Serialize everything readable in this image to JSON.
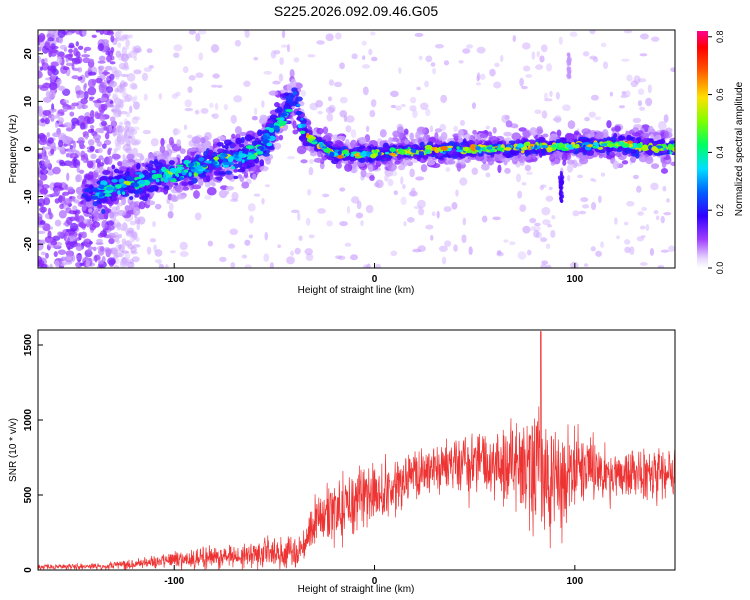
{
  "title": "S225.2026.092.09.46.G05",
  "chart_data": [
    {
      "type": "heatmap",
      "title": "",
      "xlabel": "Height of straight line (km)",
      "ylabel": "Frequency (Hz)",
      "xlim": [
        -168,
        150
      ],
      "ylim": [
        -25,
        25
      ],
      "xticks": [
        -100,
        0,
        100
      ],
      "yticks": [
        -20,
        -10,
        0,
        10,
        20
      ],
      "xtick_labels": [
        "-100",
        "0",
        "100"
      ],
      "ytick_labels": [
        "-20",
        "-10",
        "0",
        "10",
        "20"
      ],
      "colorbar": {
        "label": "Normalized spectral amplitude",
        "range": [
          0.0,
          0.82
        ],
        "ticks": [
          0.0,
          0.2,
          0.4,
          0.6,
          0.8
        ],
        "tick_labels": [
          "0.0",
          "0.2",
          "0.4",
          "0.6",
          "0.8"
        ],
        "colormap": [
          "#e8d8ff",
          "#8a00ff",
          "#2000ff",
          "#00ffff",
          "#00ff40",
          "#c8ff00",
          "#ffb000",
          "#ff0000",
          "#ff00a0"
        ]
      },
      "ridge": {
        "x": [
          -140,
          -120,
          -100,
          -80,
          -60,
          -48,
          -40,
          -35,
          -20,
          0,
          20,
          40,
          60,
          80,
          100,
          120,
          150
        ],
        "y": [
          -9,
          -7,
          -5,
          -3,
          -1,
          5,
          11,
          3,
          -1,
          -1,
          -0.5,
          0,
          0,
          0.5,
          0.5,
          1,
          0
        ]
      }
    },
    {
      "type": "line",
      "title": "",
      "xlabel": "Height of straight line (km)",
      "ylabel": "SNR (10 * v/v)",
      "xlim": [
        -168,
        150
      ],
      "ylim": [
        0,
        1600
      ],
      "xticks": [
        -100,
        0,
        100
      ],
      "yticks": [
        0,
        500,
        1000,
        1500
      ],
      "xtick_labels": [
        "-100",
        "0",
        "100"
      ],
      "ytick_labels": [
        "0",
        "500",
        "1000",
        "1500"
      ],
      "color": "#ee3333",
      "envelope": {
        "x": [
          -168,
          -140,
          -120,
          -100,
          -80,
          -60,
          -40,
          -36,
          -30,
          -20,
          -10,
          0,
          10,
          20,
          40,
          60,
          70,
          80,
          90,
          100,
          120,
          150
        ],
        "mean": [
          20,
          25,
          40,
          70,
          90,
          110,
          130,
          150,
          350,
          400,
          450,
          520,
          560,
          650,
          710,
          720,
          700,
          680,
          650,
          690,
          650,
          640
        ],
        "spread": [
          15,
          20,
          30,
          50,
          70,
          90,
          100,
          100,
          150,
          200,
          200,
          200,
          180,
          150,
          150,
          200,
          300,
          400,
          350,
          250,
          150,
          150
        ]
      },
      "peak": {
        "x": 83,
        "y": 1590
      }
    }
  ]
}
